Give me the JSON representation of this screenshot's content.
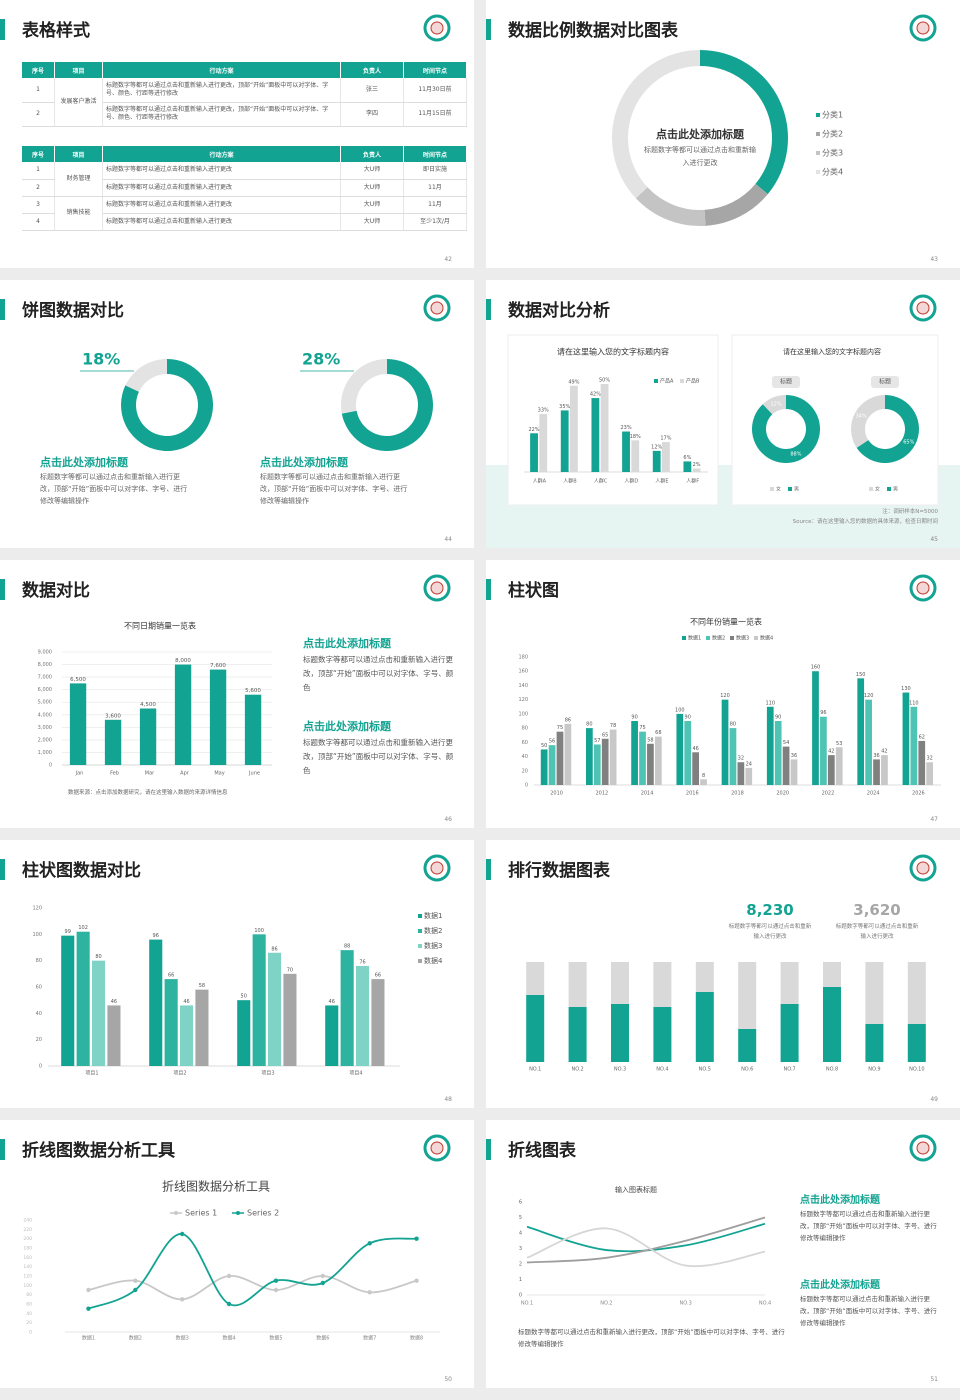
{
  "slides": [
    {
      "title": "表格样式",
      "page": 42,
      "tables": [
        {
          "header": [
            "序号",
            "项目",
            "行动方案",
            "负责人",
            "时间节点"
          ],
          "groups": [
            {
              "name": "发展客户激活",
              "rows": [
                [
                  "1",
                  "标题数字等都可以通过点击和重新输入进行更改，顶部“开始”面板中可以对字体、字号、颜色、行距等进行修改",
                  "张三",
                  "11月30日前"
                ],
                [
                  "2",
                  "标题数字等都可以通过点击和重新输入进行更改，顶部“开始”面板中可以对字体、字号、颜色、行距等进行修改",
                  "李四",
                  "11月15日前"
                ]
              ]
            }
          ]
        },
        {
          "header": [
            "序号",
            "项目",
            "行动方案",
            "负责人",
            "时间节点"
          ],
          "groups": [
            {
              "name": "财务管理",
              "rows": [
                [
                  "1",
                  "标题数字等都可以通过点击和重新输入进行更改",
                  "大U师",
                  "即日实施"
                ],
                [
                  "2",
                  "标题数字等都可以通过点击和重新输入进行更改",
                  "大U师",
                  "11月"
                ]
              ]
            },
            {
              "name": "销售技能",
              "rows": [
                [
                  "3",
                  "标题数字等都可以通过点击和重新输入进行更改",
                  "大U师",
                  "11月"
                ],
                [
                  "4",
                  "标题数字等都可以通过点击和重新输入进行更改",
                  "大U师",
                  "至少1次/月"
                ]
              ]
            }
          ]
        }
      ]
    },
    {
      "title": "数据比例数据对比图表",
      "page": 43,
      "chart": {
        "type": "donut",
        "title": "点击此处添加标题",
        "subtitle": "标题数字等都可以通过点击和重新输入进行更改",
        "categories": [
          "分类1",
          "分类2",
          "分类3",
          "分类4"
        ],
        "values": [
          36,
          13,
          14,
          37
        ],
        "colors": [
          "#13a392",
          "#a6a6a6",
          "#c4c4c4",
          "#e3e3e3"
        ]
      }
    },
    {
      "title": "饼图数据对比",
      "page": 44,
      "panels": [
        {
          "chart": {
            "type": "ring",
            "values": [
              18
            ],
            "value_labels": [
              "18%"
            ]
          },
          "heading": "点击此处添加标题",
          "text": "标题数字等都可以通过点击和重新输入进行更改，顶部“开始”面板中可以对字体、字号、进行修改等编辑操作"
        },
        {
          "chart": {
            "type": "ring",
            "values": [
              28
            ],
            "value_labels": [
              "28%"
            ]
          },
          "heading": "点击此处添加标题",
          "text": "标题数字等都可以通过点击和重新输入进行更改，顶部“开始”面板中可以对字体、字号、进行修改等编辑操作"
        }
      ]
    },
    {
      "title": "数据对比分析",
      "page": 45,
      "charts": [
        {
          "type": "bar",
          "title": "请在这里输入您的文字标题内容",
          "categories": [
            "人群A",
            "人群B",
            "人群C",
            "人群D",
            "人群E",
            "人群F"
          ],
          "series": [
            {
              "name": "产品A",
              "color": "#13a392",
              "values": [
                22,
                35,
                42,
                23,
                12,
                6
              ],
              "value_labels": [
                "22%",
                "35%",
                "42%",
                "23%",
                "12%",
                "6%"
              ]
            },
            {
              "name": "产品B",
              "color": "#d9d9d9",
              "values": [
                33,
                49,
                50,
                18,
                17,
                2
              ],
              "value_labels": [
                "33%",
                "49%",
                "50%",
                "18%",
                "17%",
                "2%"
              ]
            }
          ]
        },
        {
          "type": "pie",
          "title": "请在这里输入您的文字标题内容",
          "categories": [
            "女",
            "男"
          ],
          "colors": [
            "#d9d9d9",
            "#13a392"
          ],
          "pies": [
            {
              "label": "标题",
              "values": [
                12,
                88
              ],
              "value_labels": [
                "12%",
                "88%"
              ]
            },
            {
              "label": "标题",
              "values": [
                34,
                65
              ],
              "value_labels": [
                "34%",
                "65%"
              ]
            }
          ]
        }
      ],
      "notes": [
        "注：调研样本N=5000",
        "Source：请在这里输入您的数据的具体来源，检查日期时间"
      ]
    },
    {
      "title": "数据对比",
      "page": 46,
      "chart": {
        "type": "bar",
        "title": "不同日期销量一览表",
        "categories": [
          "Jan",
          "Feb",
          "Mar",
          "Apr",
          "May",
          "June"
        ],
        "values": [
          6500,
          3600,
          4500,
          8000,
          7600,
          5600
        ],
        "value_labels": [
          "6,500",
          "3,600",
          "4,500",
          "8,000",
          "7,600",
          "5,600"
        ],
        "color": "#13a392",
        "ylim": [
          0,
          9000
        ],
        "yticks": [
          0,
          {
            "value": 1000,
            "label": "1,000"
          },
          {
            "value": 2000,
            "label": "2,000"
          },
          {
            "value": 3000,
            "label": "3,000"
          },
          {
            "value": 4000,
            "label": "4,000"
          },
          {
            "value": 5000,
            "label": "5,000"
          },
          {
            "value": 6000,
            "label": "6,000"
          },
          {
            "value": 7000,
            "label": "7,000"
          },
          {
            "value": 8000,
            "label": "8,000"
          },
          {
            "value": 9000,
            "label": "9,000"
          }
        ],
        "grid": true
      },
      "source": "数据来源：点击添加数据研究，请在这里输入数据的来源详情信息",
      "notes": [
        {
          "heading": "点击此处添加标题",
          "text": "标题数字等都可以通过点击和重新输入进行更改，顶部“开始”面板中可以对字体、字号、颜色"
        },
        {
          "heading": "点击此处添加标题",
          "text": "标题数字等都可以通过点击和重新输入进行更改，顶部“开始”面板中可以对字体、字号、颜色"
        }
      ]
    },
    {
      "title": "柱状图",
      "page": 47,
      "chart": {
        "type": "bar",
        "title": "不同年份销量一览表",
        "categories": [
          "2010",
          "2012",
          "2014",
          "2016",
          "2018",
          "2020",
          "2022",
          "2024",
          "2026"
        ],
        "series": [
          {
            "name": "数据1",
            "color": "#13a392",
            "values": [
              50,
              80,
              90,
              100,
              120,
              110,
              160,
              150,
              130
            ]
          },
          {
            "name": "数据2",
            "color": "#4fc4b4",
            "values": [
              56,
              57,
              75,
              90,
              80,
              90,
              96,
              120,
              110
            ]
          },
          {
            "name": "数据3",
            "color": "#808080",
            "values": [
              75,
              65,
              58,
              46,
              32,
              54,
              42,
              36,
              62
            ]
          },
          {
            "name": "数据4",
            "color": "#c8c8c8",
            "values": [
              86,
              78,
              68,
              8,
              24,
              36,
              53,
              42,
              32
            ]
          }
        ],
        "ylim": [
          0,
          180
        ],
        "yticks": [
          0,
          20,
          40,
          60,
          80,
          100,
          120,
          140,
          160,
          180
        ],
        "data_labels": true
      }
    },
    {
      "title": "柱状图数据对比",
      "page": 48,
      "chart": {
        "type": "bar",
        "categories": [
          "项目1",
          "项目2",
          "项目3",
          "项目4"
        ],
        "series": [
          {
            "name": "数据1",
            "color": "#13a392",
            "values": [
              99,
              96,
              50,
              46
            ]
          },
          {
            "name": "数据2",
            "color": "#2fb3a1",
            "values": [
              102,
              66,
              100,
              88
            ]
          },
          {
            "name": "数据3",
            "color": "#7fd2c6",
            "values": [
              80,
              46,
              86,
              76
            ]
          },
          {
            "name": "数据4",
            "color": "#a6a6a6",
            "values": [
              46,
              58,
              70,
              66
            ]
          }
        ],
        "ylim": [
          0,
          120
        ],
        "yticks": [
          0,
          20,
          40,
          60,
          80,
          100,
          120
        ],
        "data_labels": true
      }
    },
    {
      "title": "排行数据图表",
      "page": 49,
      "stats": [
        {
          "value": "8,230",
          "color": "#13a392",
          "text": "标题数字等都可以通过点击和重新输入进行更改"
        },
        {
          "value": "3,620",
          "color": "#a6a6a6",
          "text": "标题数字等都可以通过点击和重新输入进行更改"
        }
      ],
      "chart": {
        "type": "bar",
        "stacked": true,
        "categories": [
          "NO.1",
          "NO.2",
          "NO.3",
          "NO.4",
          "NO.5",
          "NO.6",
          "NO.7",
          "NO.8",
          "NO.9",
          "NO.10"
        ],
        "series": [
          {
            "color": "#13a392",
            "values": [
              67,
              55,
              58,
              55,
              70,
              33,
              58,
              75,
              38,
              38
            ]
          },
          {
            "color": "#d9d9d9",
            "values": [
              33,
              45,
              42,
              45,
              30,
              67,
              42,
              25,
              62,
              62
            ]
          }
        ]
      }
    },
    {
      "title": "折线图数据分析工具",
      "page": 50,
      "chart": {
        "type": "line",
        "title": "折线图数据分析工具",
        "categories": [
          "数据1",
          "数据2",
          "数据3",
          "数据4",
          "数据5",
          "数据6",
          "数据7",
          "数据8"
        ],
        "series": [
          {
            "name": "Series 1",
            "color": "#c8c8c8",
            "values": [
              90,
              110,
              70,
              120,
              90,
              120,
              85,
              110
            ]
          },
          {
            "name": "Series 2",
            "color": "#13a392",
            "values": [
              50,
              90,
              210,
              60,
              110,
              105,
              190,
              200
            ]
          }
        ],
        "ylim": [
          0,
          240
        ],
        "yticks": [
          0,
          20,
          40,
          60,
          80,
          100,
          120,
          140,
          160,
          180,
          200,
          220,
          240
        ],
        "smooth": true
      }
    },
    {
      "title": "折线图表",
      "page": 51,
      "chart": {
        "type": "line",
        "title": "输入图表标题",
        "categories": [
          "NO.1",
          "NO.2",
          "NO.3",
          "NO.4"
        ],
        "series": [
          {
            "color": "#13a392",
            "values": [
              4.4,
              2.9,
              3.2,
              4.6
            ]
          },
          {
            "color": "#9e9e9e",
            "values": [
              2.1,
              2.4,
              3.5,
              5
            ]
          },
          {
            "color": "#d6d6d6",
            "values": [
              2.4,
              4.3,
              1.9,
              2.8
            ]
          }
        ],
        "ylim": [
          0,
          6
        ],
        "yticks": [
          0,
          1,
          2,
          3,
          4,
          5,
          6
        ],
        "smooth": true
      },
      "notes": [
        {
          "heading": "点击此处添加标题",
          "text": "标题数字等都可以通过点击和重新输入进行更改，顶部“开始”面板中可以对字体、字号、进行修改等编辑操作"
        },
        {
          "heading": "点击此处添加标题",
          "text": "标题数字等都可以通过点击和重新输入进行更改，顶部“开始”面板中可以对字体、字号、进行修改等编辑操作"
        }
      ],
      "text": "标题数字等都可以通过点击和重新输入进行更改，顶部“开始”面板中可以对字体、字号、进行修改等编辑操作"
    }
  ]
}
